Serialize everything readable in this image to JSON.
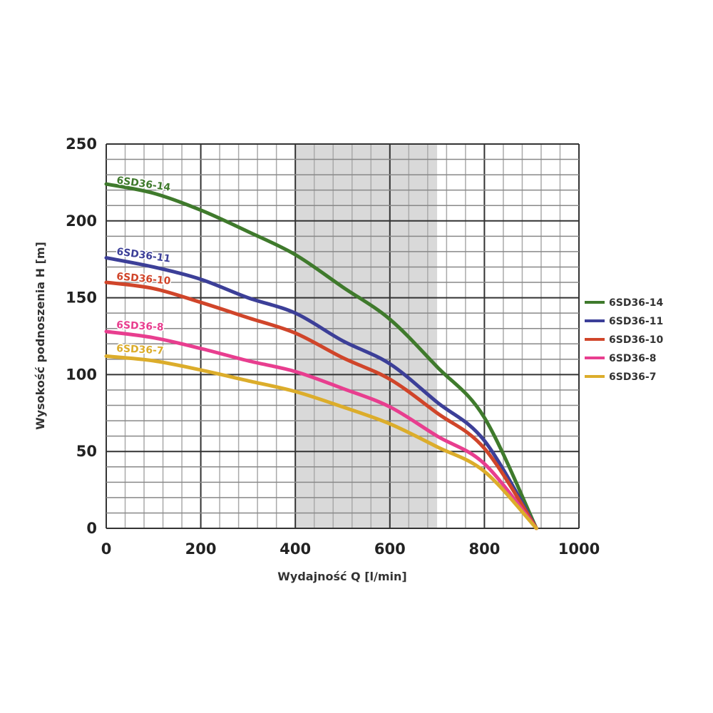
{
  "chart_data": {
    "type": "line",
    "title": "",
    "xlabel": "Wydajność Q [l/min]",
    "ylabel": "Wysokość podnoszenia H [m]",
    "xlim": [
      0,
      1000
    ],
    "ylim": [
      0,
      250
    ],
    "xticks": [
      0,
      200,
      400,
      600,
      800,
      1000
    ],
    "yticks": [
      0,
      50,
      100,
      150,
      200,
      250
    ],
    "grid": true,
    "shaded_region": {
      "x": [
        400,
        700
      ],
      "color": "#d9d9d9"
    },
    "legend_placement": "right",
    "x": [
      0,
      100,
      200,
      300,
      400,
      500,
      600,
      700,
      800,
      910
    ],
    "series": [
      {
        "name": "6SD36-14",
        "color": "#3f7a2c",
        "values": [
          224,
          218,
          207,
          193,
          178,
          157,
          136,
          105,
          72,
          0
        ]
      },
      {
        "name": "6SD36-11",
        "color": "#3c3f98",
        "values": [
          176,
          170,
          162,
          150,
          140,
          122,
          107,
          82,
          57,
          0
        ]
      },
      {
        "name": "6SD36-10",
        "color": "#d0452a",
        "values": [
          160,
          156,
          147,
          137,
          127,
          111,
          97,
          75,
          52,
          0
        ]
      },
      {
        "name": "6SD36-8",
        "color": "#e83e8f",
        "values": [
          128,
          124,
          117,
          109,
          102,
          91,
          79,
          60,
          42,
          0
        ]
      },
      {
        "name": "6SD36-7",
        "color": "#dcad2b",
        "values": [
          112,
          109,
          103,
          96,
          89,
          79,
          68,
          53,
          37,
          0
        ]
      }
    ]
  }
}
